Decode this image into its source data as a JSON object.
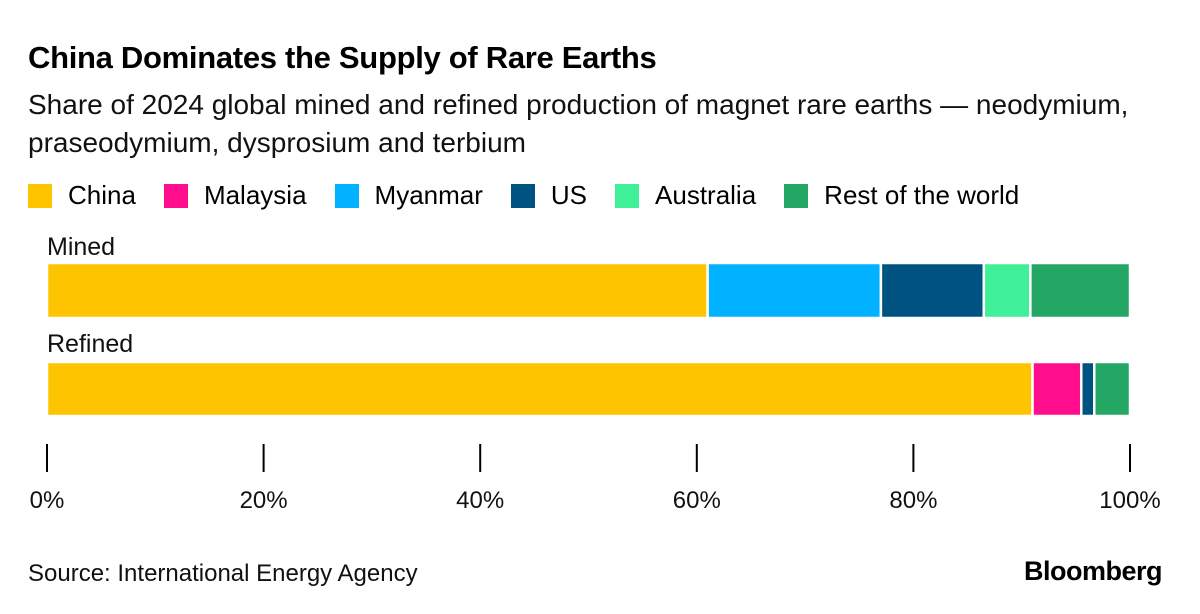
{
  "chart_data": {
    "type": "bar",
    "orientation": "horizontal",
    "stacked": true,
    "title": "China Dominates the Supply of Rare Earths",
    "subtitle": "Share of 2024 global mined and refined production of magnet rare earths — neodymium, praseodymium, dysprosium and terbium",
    "categories": [
      "Mined",
      "Refined"
    ],
    "series": [
      {
        "name": "China",
        "color": "#FFC400",
        "values": [
          61,
          91
        ]
      },
      {
        "name": "Malaysia",
        "color": "#FF0D8C",
        "values": [
          0,
          4.5
        ]
      },
      {
        "name": "Myanmar",
        "color": "#00B2FF",
        "values": [
          16,
          0
        ]
      },
      {
        "name": "US",
        "color": "#005280",
        "values": [
          9.5,
          1.2
        ]
      },
      {
        "name": "Australia",
        "color": "#3FF098",
        "values": [
          4.3,
          0
        ]
      },
      {
        "name": "Rest of the world",
        "color": "#24A764",
        "values": [
          9.2,
          3.3
        ]
      }
    ],
    "xlim": [
      0,
      100
    ],
    "xticks": [
      0,
      20,
      40,
      60,
      80,
      100
    ],
    "xtick_labels": [
      "0%",
      "20%",
      "40%",
      "60%",
      "80%",
      "100%"
    ],
    "xlabel": "",
    "ylabel": "",
    "legend_position": "top"
  },
  "source": "Source: International Energy Agency",
  "brand": "Bloomberg"
}
